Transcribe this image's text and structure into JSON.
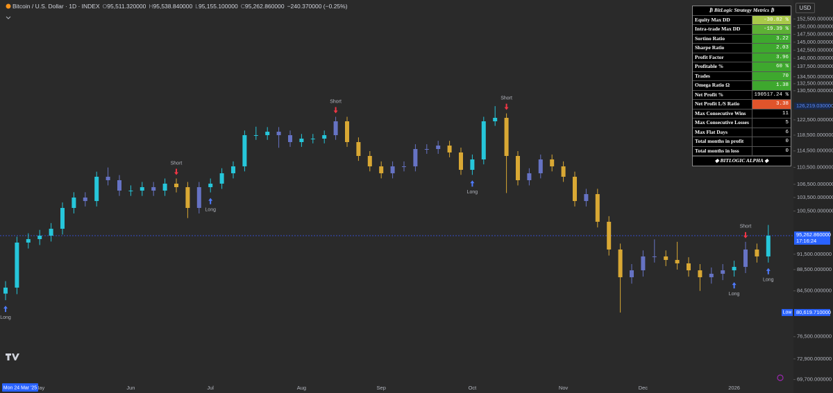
{
  "header": {
    "symbol": "Bitcoin / U.S. Dollar · 1D · INDEX",
    "ohlc": [
      {
        "key": "O",
        "value": "95,511.320000"
      },
      {
        "key": "H",
        "value": "95,538.840000"
      },
      {
        "key": "L",
        "value": "95,155.100000"
      },
      {
        "key": "C",
        "value": "95,262.860000"
      }
    ],
    "change": "−240.370000 (−0.25%)",
    "currency": "USD"
  },
  "chart_data": {
    "type": "candlestick",
    "log_scale": true,
    "grid": false,
    "categories": [
      null,
      null,
      null,
      "May",
      null,
      null,
      null,
      null,
      null,
      null,
      null,
      "Jun",
      null,
      null,
      null,
      null,
      null,
      null,
      "Jul",
      null,
      null,
      null,
      null,
      null,
      null,
      null,
      "Aug",
      null,
      null,
      null,
      null,
      null,
      null,
      "Sep",
      null,
      null,
      null,
      null,
      null,
      null,
      null,
      "Oct",
      null,
      null,
      null,
      null,
      null,
      null,
      null,
      "Nov",
      null,
      null,
      null,
      null,
      null,
      null,
      "Dec",
      null,
      null,
      null,
      null,
      null,
      null,
      null,
      "2026",
      null,
      null,
      null
    ],
    "open": [
      84000,
      85100,
      93840,
      94550,
      95260,
      96700,
      101170,
      103480,
      102700,
      108260,
      107450,
      105050,
      105050,
      105840,
      105050,
      106650,
      105840,
      101170,
      105840,
      106650,
      109080,
      110730,
      118490,
      118490,
      119380,
      118490,
      116720,
      117600,
      117600,
      118490,
      122110,
      116720,
      113260,
      110730,
      109080,
      110730,
      110730,
      114980,
      114980,
      115840,
      114120,
      109900,
      112410,
      122110,
      123030,
      113260,
      107450,
      109080,
      112410,
      110730,
      108260,
      102700,
      104260,
      98180,
      92440,
      87040,
      88360,
      91060,
      91060,
      90370,
      89700,
      88360,
      87040,
      87700,
      88360,
      89020,
      92440,
      91060
    ],
    "high": [
      86300,
      95040,
      95750,
      96460,
      97900,
      102370,
      104680,
      104680,
      109460,
      110460,
      108650,
      106250,
      107040,
      107040,
      107850,
      107850,
      107040,
      107040,
      107850,
      110280,
      111930,
      119690,
      120690,
      120580,
      120580,
      119690,
      118800,
      118800,
      119690,
      123310,
      123310,
      117920,
      114460,
      111930,
      111930,
      111930,
      116180,
      116180,
      117040,
      117040,
      115320,
      113610,
      123310,
      126200,
      124230,
      114460,
      110280,
      113610,
      113610,
      111930,
      109460,
      105460,
      105460,
      99380,
      93640,
      89560,
      92260,
      94500,
      92260,
      94000,
      90900,
      89560,
      88900,
      89560,
      90220,
      94000,
      93640,
      97500
    ],
    "low": [
      82800,
      83900,
      92640,
      93350,
      94060,
      95500,
      99970,
      101500,
      101500,
      106250,
      103850,
      103850,
      103850,
      103850,
      103850,
      104640,
      98970,
      99970,
      104640,
      105450,
      107880,
      109530,
      117290,
      117290,
      115290,
      115520,
      115520,
      116400,
      116400,
      117290,
      115520,
      112060,
      109530,
      107880,
      107880,
      109530,
      109530,
      113780,
      113780,
      112920,
      108700,
      108700,
      111210,
      120910,
      104500,
      106250,
      106250,
      107880,
      109530,
      107060,
      101500,
      101500,
      96980,
      91240,
      80620,
      85840,
      87160,
      89860,
      89170,
      88500,
      87160,
      84500,
      85840,
      86500,
      87160,
      87820,
      89860,
      89860
    ],
    "close": [
      85100,
      93840,
      94550,
      95260,
      96700,
      101170,
      103480,
      102700,
      108260,
      107450,
      105050,
      105050,
      105840,
      105050,
      106650,
      105840,
      101170,
      105840,
      106650,
      109080,
      110730,
      118490,
      118490,
      119380,
      118490,
      116720,
      117600,
      117600,
      118490,
      122110,
      116720,
      113260,
      110730,
      109080,
      110730,
      110730,
      114980,
      114980,
      115840,
      114120,
      109900,
      112410,
      122110,
      123030,
      113260,
      107450,
      109080,
      112410,
      110730,
      108260,
      102700,
      104260,
      98180,
      92440,
      87040,
      88360,
      91060,
      91060,
      90370,
      89700,
      88360,
      87040,
      87700,
      88360,
      89020,
      92440,
      91060,
      95260
    ],
    "signals": [
      "Long",
      null,
      null,
      null,
      null,
      null,
      null,
      null,
      null,
      null,
      null,
      null,
      null,
      null,
      null,
      "Short",
      null,
      null,
      "Long",
      null,
      null,
      null,
      null,
      null,
      null,
      null,
      null,
      null,
      null,
      "Short",
      null,
      null,
      null,
      null,
      null,
      null,
      null,
      null,
      null,
      null,
      null,
      "Long",
      null,
      null,
      "Short",
      null,
      null,
      null,
      null,
      null,
      null,
      null,
      null,
      null,
      null,
      null,
      null,
      null,
      null,
      null,
      null,
      null,
      null,
      null,
      "Long",
      "Short",
      null,
      "Long"
    ],
    "long_color": "#26c6da",
    "short_color": "#d9a834",
    "neutral_color": "#6673c4",
    "ylim": [
      68930,
      158900
    ],
    "yticks": [
      {
        "value": 152500,
        "label": "152,500.000000"
      },
      {
        "value": 150000,
        "label": "150,000.000000"
      },
      {
        "value": 147500,
        "label": "147,500.000000"
      },
      {
        "value": 145000,
        "label": "145,000.000000"
      },
      {
        "value": 142500,
        "label": "142,500.000000"
      },
      {
        "value": 140000,
        "label": "140,000.000000"
      },
      {
        "value": 137500,
        "label": "137,500.000000"
      },
      {
        "value": 134500,
        "label": "134,500.000000"
      },
      {
        "value": 132500,
        "label": "132,500.000000"
      },
      {
        "value": 130500,
        "label": "130,500.000000"
      },
      {
        "value": 122500,
        "label": "122,500.000000"
      },
      {
        "value": 118500,
        "label": "118,500.000000"
      },
      {
        "value": 114500,
        "label": "114,500.000000"
      },
      {
        "value": 110500,
        "label": "110,500.000000"
      },
      {
        "value": 106500,
        "label": "106,500.000000"
      },
      {
        "value": 103500,
        "label": "103,500.000000"
      },
      {
        "value": 100500,
        "label": "100,500.000000"
      },
      {
        "value": 91500,
        "label": "91,500.000000"
      },
      {
        "value": 88500,
        "label": "88,500.000000"
      },
      {
        "value": 84500,
        "label": "84,500.000000"
      },
      {
        "value": 76500,
        "label": "76,500.000000"
      },
      {
        "value": 72900,
        "label": "72,900.000000"
      },
      {
        "value": 69700,
        "label": "69,700.000000"
      }
    ],
    "high_marker": {
      "value": 126219.03,
      "label": "126,219.030000"
    },
    "current_price": {
      "value": 95262.86,
      "label": "95,262.860000",
      "countdown": "17:16:24"
    },
    "low_marker": {
      "value": 80619.71,
      "label": "80,619.710000",
      "tag": "Low"
    },
    "crosshair_date": "Mon 24 Mar '25"
  },
  "metrics": {
    "title": "₿ BitLogic Strategy Metrics ₿",
    "footer": "◆ BITLOGIC ALPHA ◆",
    "rows": [
      {
        "label": "Equity Max DD",
        "value": "-30.82 %",
        "color": "#a9c94a"
      },
      {
        "label": "Intra-trade Max DD",
        "value": "-19.39 %",
        "color": "#5db135"
      },
      {
        "label": "Sortino Ratio",
        "value": "3.22",
        "color": "#3ea82e"
      },
      {
        "label": "Sharpe Ratio",
        "value": "2.03",
        "color": "#3ea82e"
      },
      {
        "label": "Profit Factor",
        "value": "3.96",
        "color": "#3ea82e"
      },
      {
        "label": "Profitable %",
        "value": "60 %",
        "color": "#3ea82e"
      },
      {
        "label": "Trades",
        "value": "70",
        "color": "#3ea82e"
      },
      {
        "label": "Omega Ratio Ω",
        "value": "1.38",
        "color": "#3ea82e"
      },
      {
        "label": "Net Profit %",
        "value": "190517.24 %",
        "color": "#000000"
      },
      {
        "label": "Net Profit L/S Ratio",
        "value": "3.38",
        "color": "#e0542b"
      },
      {
        "label": "Max Consecutive Wins",
        "value": "11",
        "color": "#000000"
      },
      {
        "label": "Max Consecutive Losses",
        "value": "5",
        "color": "#000000"
      },
      {
        "label": "Max Flat Days",
        "value": "6",
        "color": "#000000"
      },
      {
        "label": "Total months in profit",
        "value": "0",
        "color": "#000000"
      },
      {
        "label": "Total months in loss",
        "value": "0",
        "color": "#000000"
      }
    ]
  }
}
